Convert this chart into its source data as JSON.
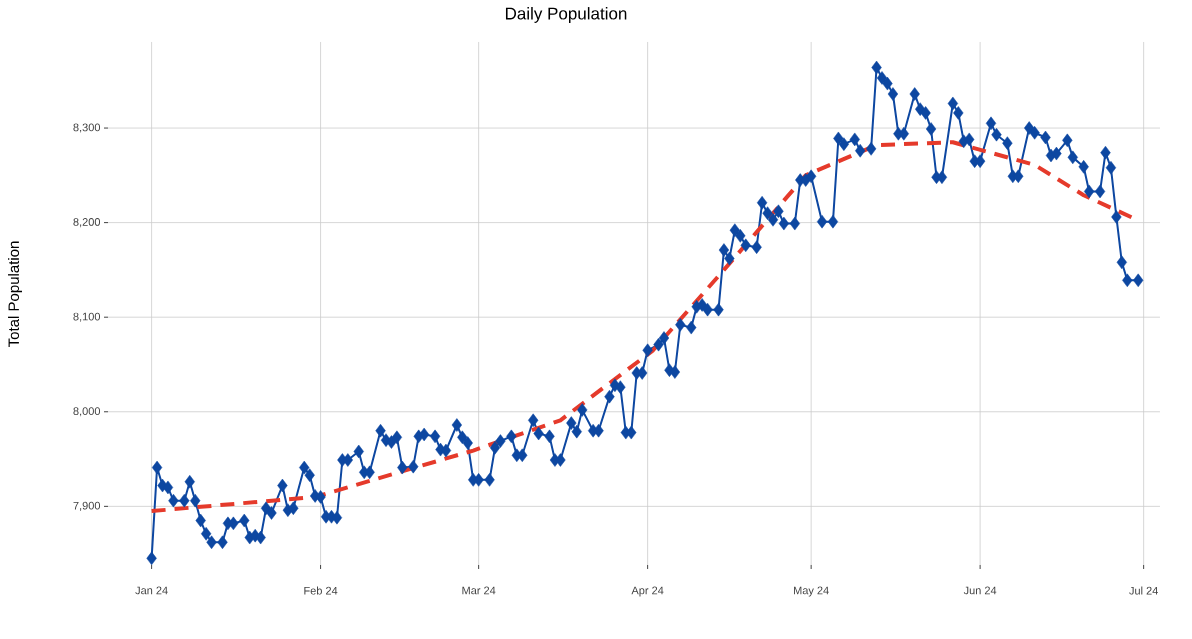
{
  "chart_data": {
    "type": "line",
    "title": "Daily Population",
    "ylabel": "Total Population",
    "x": [
      "2024-01-01",
      "2024-01-02",
      "2024-01-03",
      "2024-01-04",
      "2024-01-05",
      "2024-01-07",
      "2024-01-08",
      "2024-01-09",
      "2024-01-10",
      "2024-01-11",
      "2024-01-12",
      "2024-01-14",
      "2024-01-15",
      "2024-01-16",
      "2024-01-18",
      "2024-01-19",
      "2024-01-20",
      "2024-01-21",
      "2024-01-22",
      "2024-01-23",
      "2024-01-25",
      "2024-01-26",
      "2024-01-27",
      "2024-01-29",
      "2024-01-30",
      "2024-01-31",
      "2024-02-01",
      "2024-02-02",
      "2024-02-03",
      "2024-02-04",
      "2024-02-05",
      "2024-02-06",
      "2024-02-08",
      "2024-02-09",
      "2024-02-10",
      "2024-02-12",
      "2024-02-13",
      "2024-02-14",
      "2024-02-15",
      "2024-02-16",
      "2024-02-18",
      "2024-02-19",
      "2024-02-20",
      "2024-02-22",
      "2024-02-23",
      "2024-02-24",
      "2024-02-26",
      "2024-02-27",
      "2024-02-28",
      "2024-02-29",
      "2024-03-01",
      "2024-03-03",
      "2024-03-04",
      "2024-03-05",
      "2024-03-07",
      "2024-03-08",
      "2024-03-09",
      "2024-03-11",
      "2024-03-12",
      "2024-03-14",
      "2024-03-15",
      "2024-03-16",
      "2024-03-18",
      "2024-03-19",
      "2024-03-20",
      "2024-03-22",
      "2024-03-23",
      "2024-03-25",
      "2024-03-26",
      "2024-03-27",
      "2024-03-28",
      "2024-03-29",
      "2024-03-30",
      "2024-03-31",
      "2024-04-01",
      "2024-04-03",
      "2024-04-04",
      "2024-04-05",
      "2024-04-06",
      "2024-04-07",
      "2024-04-09",
      "2024-04-10",
      "2024-04-11",
      "2024-04-12",
      "2024-04-14",
      "2024-04-15",
      "2024-04-16",
      "2024-04-17",
      "2024-04-18",
      "2024-04-19",
      "2024-04-21",
      "2024-04-22",
      "2024-04-23",
      "2024-04-24",
      "2024-04-25",
      "2024-04-26",
      "2024-04-28",
      "2024-04-29",
      "2024-04-30",
      "2024-05-01",
      "2024-05-03",
      "2024-05-05",
      "2024-05-06",
      "2024-05-07",
      "2024-05-09",
      "2024-05-10",
      "2024-05-12",
      "2024-05-13",
      "2024-05-14",
      "2024-05-15",
      "2024-05-16",
      "2024-05-17",
      "2024-05-18",
      "2024-05-20",
      "2024-05-21",
      "2024-05-22",
      "2024-05-23",
      "2024-05-24",
      "2024-05-25",
      "2024-05-27",
      "2024-05-28",
      "2024-05-29",
      "2024-05-30",
      "2024-05-31",
      "2024-06-01",
      "2024-06-03",
      "2024-06-04",
      "2024-06-06",
      "2024-06-07",
      "2024-06-08",
      "2024-06-10",
      "2024-06-11",
      "2024-06-13",
      "2024-06-14",
      "2024-06-15",
      "2024-06-17",
      "2024-06-18",
      "2024-06-20",
      "2024-06-21",
      "2024-06-23",
      "2024-06-24",
      "2024-06-25",
      "2024-06-26",
      "2024-06-27",
      "2024-06-28",
      "2024-06-30"
    ],
    "series": [
      {
        "color": "#0d47a1",
        "marker": "diamond",
        "line_style": "solid",
        "values": [
          7845,
          7941,
          7922,
          7920,
          7906,
          7906,
          7926,
          7906,
          7885,
          7871,
          7862,
          7862,
          7882,
          7882,
          7885,
          7867,
          7869,
          7867,
          7898,
          7893,
          7922,
          7896,
          7898,
          7941,
          7933,
          7911,
          7910,
          7889,
          7889,
          7888,
          7949,
          7949,
          7958,
          7936,
          7936,
          7980,
          7970,
          7968,
          7973,
          7941,
          7942,
          7974,
          7976,
          7974,
          7960,
          7959,
          7986,
          7973,
          7967,
          7928,
          7928,
          7928,
          7962,
          7969,
          7974,
          7954,
          7954,
          7991,
          7977,
          7974,
          7949,
          7949,
          7988,
          7979,
          8002,
          7980,
          7980,
          8016,
          8028,
          8026,
          7978,
          7978,
          8041,
          8041,
          8065,
          8071,
          8078,
          8044,
          8042,
          8092,
          8089,
          8111,
          8113,
          8108,
          8108,
          8171,
          8162,
          8192,
          8186,
          8176,
          8174,
          8221,
          8210,
          8203,
          8212,
          8199,
          8199,
          8245,
          8245,
          8249,
          8201,
          8201,
          8289,
          8283,
          8288,
          8276,
          8278,
          8364,
          8353,
          8347,
          8336,
          8294,
          8294,
          8336,
          8320,
          8316,
          8299,
          8248,
          8248,
          8326,
          8316,
          8286,
          8288,
          8265,
          8265,
          8305,
          8293,
          8284,
          8249,
          8249,
          8300,
          8295,
          8290,
          8271,
          8273,
          8287,
          8269,
          8259,
          8233,
          8233,
          8274,
          8258,
          8206,
          8158,
          8139,
          8139
        ]
      },
      {
        "color": "#e53a2b",
        "marker": "none",
        "line_style": "dashed",
        "x": [
          "2024-01-01",
          "2024-01-31",
          "2024-02-29",
          "2024-03-16",
          "2024-04-02",
          "2024-04-15",
          "2024-04-30",
          "2024-05-13",
          "2024-05-27",
          "2024-06-11",
          "2024-06-20",
          "2024-06-29"
        ],
        "values": [
          7895,
          7910,
          7959,
          7991,
          8065,
          8150,
          8250,
          8282,
          8285,
          8261,
          8229,
          8205
        ]
      }
    ],
    "xlim": [
      "2023-12-24",
      "2024-07-04"
    ],
    "xticks": [
      {
        "value": "2024-01-01",
        "label": "Jan 24"
      },
      {
        "value": "2024-02-01",
        "label": "Feb 24"
      },
      {
        "value": "2024-03-01",
        "label": "Mar 24"
      },
      {
        "value": "2024-04-01",
        "label": "Apr 24"
      },
      {
        "value": "2024-05-01",
        "label": "May 24"
      },
      {
        "value": "2024-06-01",
        "label": "Jun 24"
      },
      {
        "value": "2024-07-01",
        "label": "Jul 24"
      }
    ],
    "ylim": [
      7838,
      8391
    ],
    "yticks": [
      {
        "value": 7900,
        "label": "7,900"
      },
      {
        "value": 8000,
        "label": "8,000"
      },
      {
        "value": 8100,
        "label": "8,100"
      },
      {
        "value": 8200,
        "label": "8,200"
      },
      {
        "value": 8300,
        "label": "8,300"
      }
    ],
    "grid": true
  }
}
